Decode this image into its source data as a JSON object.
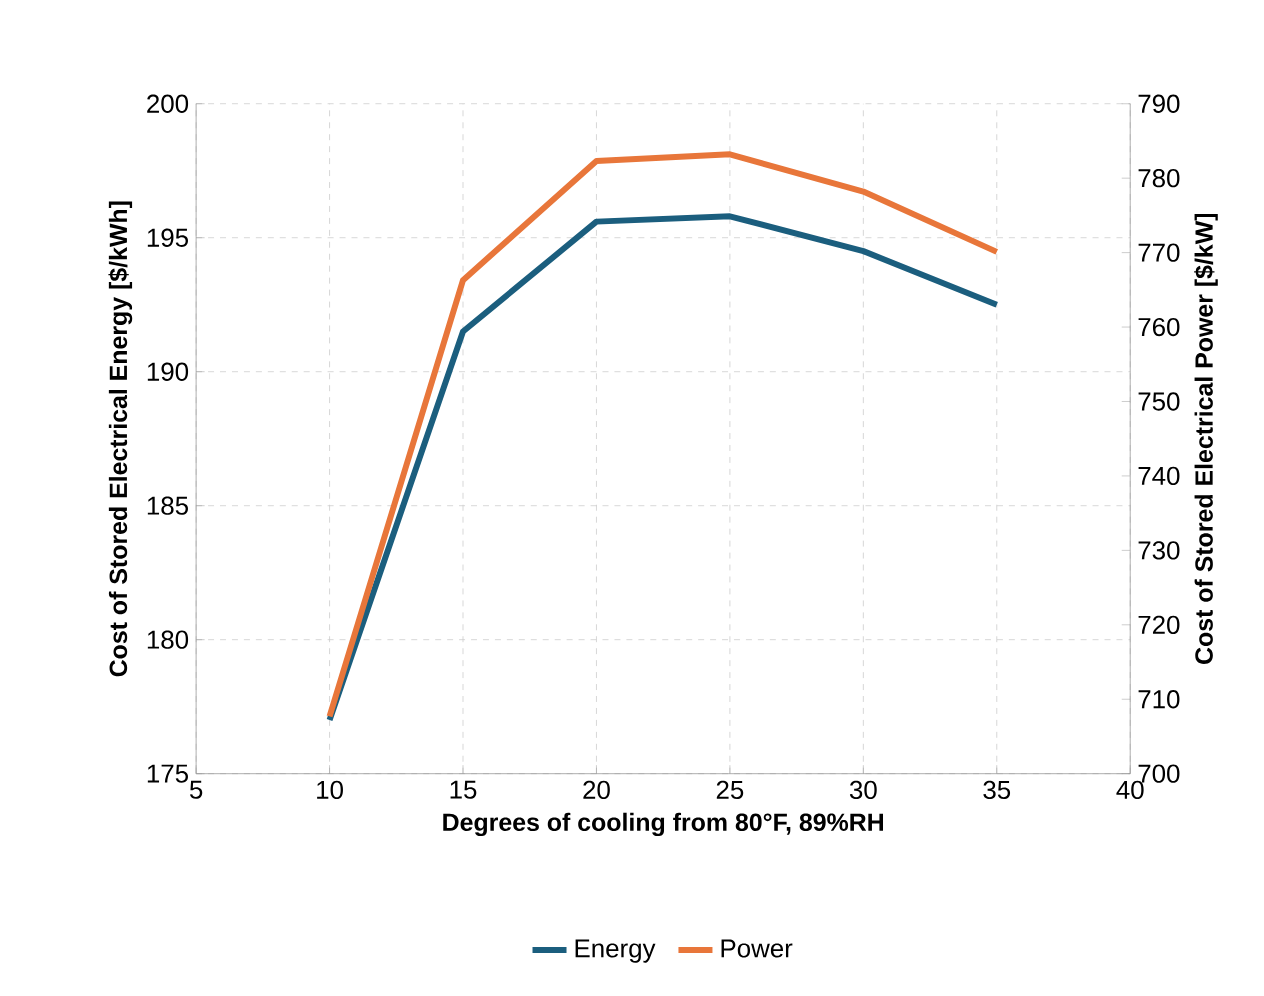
{
  "chart_data": {
    "type": "line",
    "xlabel": "Degrees of cooling from 80°F, 89%RH",
    "ylabel": "Cost of Stored Electrical Energy [$/kWh]",
    "y2label": "Cost of Stored Electrical Power [$/kW]",
    "x": [
      10,
      15,
      20,
      25,
      30,
      35
    ],
    "series": [
      {
        "name": "Energy",
        "color": "#1b5e7e",
        "values": [
          177.0,
          191.5,
          195.6,
          195.8,
          194.5,
          192.5
        ]
      },
      {
        "name": "Power",
        "color": "#e8763a",
        "axis": "y2",
        "values": [
          707.7,
          766.3,
          782.3,
          783.2,
          778.2,
          770.1
        ]
      }
    ],
    "xlim": [
      5,
      40
    ],
    "xticks": [
      5,
      10,
      15,
      20,
      25,
      30,
      35,
      40
    ],
    "ylim": [
      175,
      200
    ],
    "yticks": [
      175,
      180,
      185,
      190,
      195,
      200
    ],
    "y2lim": [
      700,
      790
    ],
    "y2ticks": [
      700,
      710,
      720,
      730,
      740,
      750,
      760,
      770,
      780,
      790
    ],
    "grid": true,
    "legend": "bottom",
    "marker": "none",
    "line_style": "solid"
  }
}
